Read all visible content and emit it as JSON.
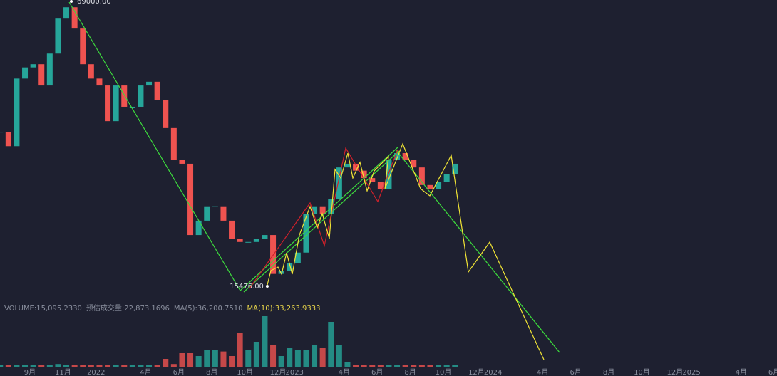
{
  "chart_data": {
    "type": "candlestick",
    "x": [
      -1.8,
      -1.3,
      -0.8,
      -0.3,
      0.2,
      0.7,
      1.2,
      1.7,
      2.2,
      2.7,
      3.2,
      3.7,
      4.2,
      4.7,
      5.2,
      5.7,
      6.2,
      6.7,
      7.2,
      7.7,
      8.2,
      8.7,
      9.2,
      9.7,
      10.2,
      10.7,
      11.2,
      11.7,
      12.2,
      12.7,
      13.2,
      13.7,
      14.2,
      14.7,
      15.2,
      15.7,
      16.2,
      16.7,
      17.2,
      17.7,
      18.2,
      18.7,
      19.2,
      19.7,
      20.2,
      20.7,
      21.2,
      21.7,
      22.2,
      22.7,
      23.2,
      23.7,
      24.2,
      24.7,
      25.2,
      25.7
    ],
    "close": [
      44500,
      41800,
      54500,
      56600,
      57200,
      53200,
      59200,
      65900,
      67900,
      63900,
      57200,
      54500,
      53200,
      46500,
      53200,
      49200,
      49200,
      53200,
      53900,
      50500,
      45200,
      39200,
      38500,
      25100,
      27800,
      30500,
      30500,
      27800,
      24400,
      23800,
      23800,
      24400,
      25100,
      17800,
      18400,
      19800,
      21800,
      29100,
      30500,
      29100,
      31800,
      37800,
      38500,
      37200,
      35800,
      35100,
      33800,
      39200,
      40500,
      39200,
      37800,
      34500,
      33800,
      35100,
      36500,
      38500
    ],
    "volume": [
      4000,
      4000,
      5000,
      4000,
      5000,
      4000,
      5000,
      6000,
      5000,
      4000,
      4000,
      5000,
      4000,
      5000,
      4000,
      4000,
      5000,
      4000,
      4000,
      5000,
      15000,
      6000,
      25000,
      25000,
      20000,
      30000,
      30000,
      28000,
      20000,
      60000,
      30000,
      45000,
      90000,
      40000,
      20000,
      35000,
      30000,
      30000,
      40000,
      35000,
      80000,
      40000,
      10000,
      5000,
      4000,
      5000,
      4000,
      5000,
      4000,
      4000,
      5000,
      4000,
      4000,
      4000,
      4000,
      4000
    ],
    "up_color": "#26a69a",
    "down_color": "#ef5350",
    "xlim": [
      -1.81,
      45.17
    ],
    "ylim": [
      13067,
      69268
    ],
    "volume_lim": [
      0,
      100000
    ],
    "xticks": [
      {
        "value": 0,
        "label": "9月"
      },
      {
        "value": 2,
        "label": "11月"
      },
      {
        "value": 4,
        "label": "2022"
      },
      {
        "value": 7,
        "label": "4月"
      },
      {
        "value": 9,
        "label": "6月"
      },
      {
        "value": 11,
        "label": "8月"
      },
      {
        "value": 13,
        "label": "10月"
      },
      {
        "value": 15,
        "label": "12月"
      },
      {
        "value": 16,
        "label": "2023"
      },
      {
        "value": 19,
        "label": "4月"
      },
      {
        "value": 21,
        "label": "6月"
      },
      {
        "value": 23,
        "label": "8月"
      },
      {
        "value": 25,
        "label": "10月"
      },
      {
        "value": 27,
        "label": "12月"
      },
      {
        "value": 28,
        "label": "2024"
      },
      {
        "value": 31,
        "label": "4月"
      },
      {
        "value": 33,
        "label": "6月"
      },
      {
        "value": 35,
        "label": "8月"
      },
      {
        "value": 37,
        "label": "10月"
      },
      {
        "value": 39,
        "label": "12月"
      },
      {
        "value": 40,
        "label": "2025"
      },
      {
        "value": 43,
        "label": "4月"
      },
      {
        "value": 45,
        "label": "6月"
      }
    ],
    "annotations": [
      {
        "label": "69000.00",
        "value": 69000,
        "x": 2.5,
        "anchor": "start"
      },
      {
        "label": "15476.00",
        "value": 15476,
        "x": 14.35,
        "anchor": "end"
      }
    ],
    "volume_legend": [
      {
        "label": "VOLUME:15,095.2330",
        "color": "#8a8f9e"
      },
      {
        "label": "预估成交量:22,873.1696",
        "color": "#8a8f9e"
      },
      {
        "label": "MA(5):36,200.7510",
        "color": "#8a8f9e"
      },
      {
        "label": "MA(10):33,263.9333",
        "color": "#e6d34a"
      }
    ]
  }
}
